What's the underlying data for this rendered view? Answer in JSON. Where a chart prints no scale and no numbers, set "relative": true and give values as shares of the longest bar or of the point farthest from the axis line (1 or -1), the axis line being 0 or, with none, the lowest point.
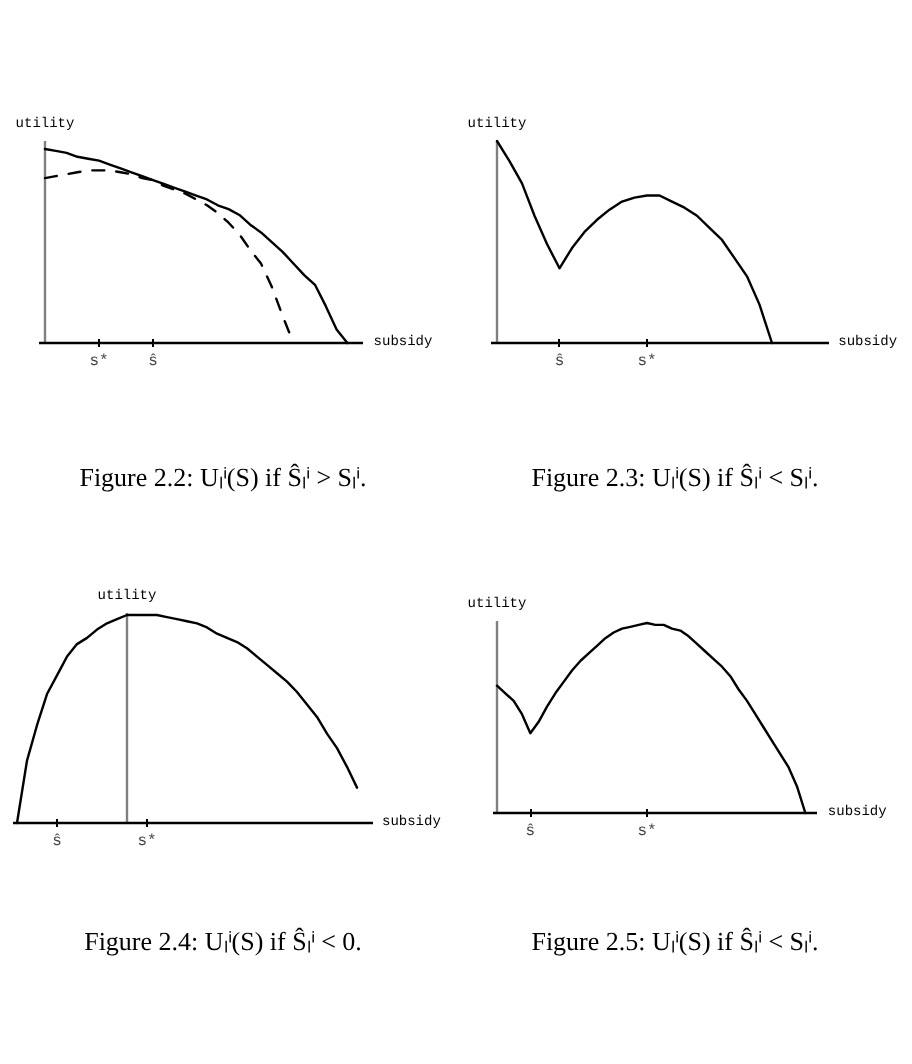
{
  "chart_data": [
    {
      "type": "line",
      "title": "Figure 2.2: Uₗⁱ(S) if Ŝₗⁱ > Sₗⁱ.",
      "xlabel": "subsidy",
      "ylabel": "utility",
      "relative": true,
      "line_style": "solid",
      "categories": [
        null,
        null,
        null,
        null,
        null,
        "s*",
        null,
        null,
        null,
        null,
        "ŝ",
        null,
        null,
        null,
        null,
        null,
        null,
        null,
        null,
        null,
        null,
        null,
        null,
        null,
        null,
        null,
        null,
        null,
        null,
        null
      ],
      "series": [
        {
          "color": "#000000",
          "values": [
            1.0,
            0.99,
            0.98,
            0.96,
            0.95,
            0.94,
            0.92,
            0.9,
            0.88,
            0.86,
            0.84,
            0.82,
            0.8,
            0.78,
            0.76,
            0.74,
            0.71,
            0.69,
            0.66,
            0.61,
            0.57,
            0.52,
            0.47,
            0.41,
            0.35,
            0.3,
            0.19,
            0.07,
            0,
            null
          ]
        },
        {
          "color": "#000000",
          "line_style": "dashed",
          "values": [
            0.85,
            0.86,
            0.87,
            0.88,
            0.89,
            0.89,
            0.89,
            0.88,
            0.87,
            0.85,
            0.84,
            0.81,
            0.79,
            0.77,
            0.74,
            0.71,
            0.67,
            0.62,
            0.56,
            0.48,
            0.41,
            0.29,
            0.14,
            0,
            null,
            null,
            null,
            null,
            null,
            null
          ]
        }
      ]
    },
    {
      "type": "line",
      "title": "Figure 2.3: Uₗⁱ(S) if Ŝₗⁱ < Sₗⁱ.",
      "xlabel": "subsidy",
      "ylabel": "utility",
      "relative": true,
      "line_style": "solid",
      "categories": [
        null,
        null,
        null,
        null,
        null,
        "ŝ",
        null,
        null,
        null,
        null,
        null,
        null,
        "s*",
        null,
        null,
        null,
        null,
        null,
        null,
        null,
        null,
        null,
        null,
        null,
        null,
        null,
        null
      ],
      "series": [
        {
          "color": "#000000",
          "values": [
            1.0,
            0.9,
            0.79,
            0.63,
            0.49,
            0.37,
            0.47,
            0.55,
            0.61,
            0.66,
            0.7,
            0.72,
            0.73,
            0.73,
            0.7,
            0.67,
            0.63,
            0.57,
            0.51,
            0.42,
            0.33,
            0.19,
            0,
            null,
            null,
            null,
            null
          ]
        }
      ]
    },
    {
      "type": "line",
      "title": "Figure 2.4: Uₗⁱ(S) if Ŝₗⁱ < 0.",
      "xlabel": "subsidy",
      "ylabel": "utility",
      "relative": true,
      "line_style": "solid",
      "categories": [
        null,
        null,
        null,
        null,
        "ŝ",
        null,
        null,
        null,
        null,
        null,
        null,
        null,
        null,
        "s*",
        null,
        null,
        null,
        null,
        null,
        null,
        null,
        null,
        null,
        null,
        null,
        null,
        null,
        null,
        null,
        null,
        null,
        null,
        null,
        null,
        null,
        null
      ],
      "series": [
        {
          "color": "#000000",
          "values": [
            0,
            0.3,
            0.47,
            0.62,
            0.71,
            0.8,
            0.86,
            0.89,
            0.93,
            0.96,
            0.98,
            1.0,
            1.0,
            1.0,
            1.0,
            0.99,
            0.98,
            0.97,
            0.96,
            0.94,
            0.91,
            0.89,
            0.87,
            0.84,
            0.8,
            0.76,
            0.72,
            0.68,
            0.63,
            0.57,
            0.51,
            0.43,
            0.36,
            0.27,
            0.17,
            null
          ]
        }
      ]
    },
    {
      "type": "line",
      "title": "Figure 2.5: Uₗⁱ(S) if Ŝₗⁱ < Sₗⁱ.",
      "xlabel": "subsidy",
      "ylabel": "utility",
      "relative": true,
      "line_style": "solid",
      "categories": [
        null,
        null,
        null,
        null,
        "ŝ",
        null,
        null,
        null,
        null,
        null,
        null,
        null,
        null,
        null,
        null,
        null,
        null,
        null,
        "s*",
        null,
        null,
        null,
        null,
        null,
        null,
        null,
        null,
        null,
        null,
        null,
        null,
        null,
        null,
        null,
        null,
        null,
        null,
        null,
        null
      ],
      "series": [
        {
          "color": "#000000",
          "values": [
            0.67,
            0.63,
            0.59,
            0.52,
            0.42,
            0.48,
            0.56,
            0.63,
            0.69,
            0.75,
            0.8,
            0.84,
            0.88,
            0.92,
            0.95,
            0.97,
            0.98,
            0.99,
            1.0,
            0.99,
            0.99,
            0.97,
            0.96,
            0.93,
            0.89,
            0.85,
            0.81,
            0.77,
            0.72,
            0.65,
            0.59,
            0.52,
            0.45,
            0.38,
            0.31,
            0.24,
            0.14,
            0,
            null
          ]
        }
      ]
    }
  ]
}
